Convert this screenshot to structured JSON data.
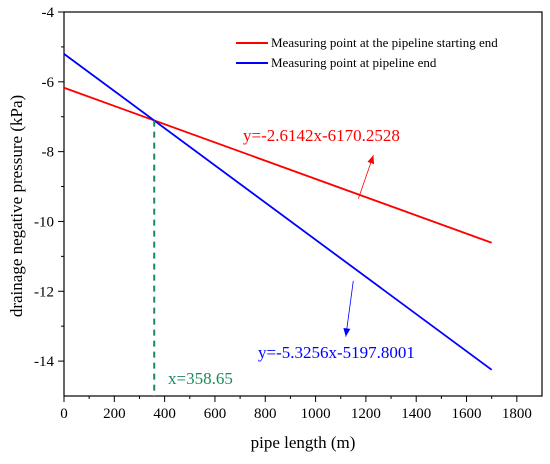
{
  "chart_data": {
    "type": "line",
    "xlabel": "pipe length (m)",
    "ylabel": "drainage negative pressure (kPa)",
    "xlim": [
      0,
      1900
    ],
    "ylim": [
      -15,
      -4
    ],
    "x_ticks": [
      0,
      200,
      400,
      600,
      800,
      1000,
      1200,
      1400,
      1600,
      1800
    ],
    "y_ticks": [
      -4,
      -6,
      -8,
      -10,
      -12,
      -14
    ],
    "grid": false,
    "legend_position": "top-right",
    "series": [
      {
        "name": "Measuring point at the pipeline starting end",
        "color": "#ff0000",
        "x": [
          0,
          1700
        ],
        "y": [
          -6.17,
          -10.61
        ],
        "equation": "y=-2.6142x-6170.2528"
      },
      {
        "name": "Measuring point at pipeline end",
        "color": "#0000ff",
        "x": [
          0,
          1700
        ],
        "y": [
          -5.2,
          -14.25
        ],
        "equation": "y=-5.3256x-5197.8001"
      }
    ],
    "intersection": {
      "x": 358.65,
      "y": -7.11,
      "label": "x=358.65",
      "color": "#1a8a5a"
    },
    "annotations": {
      "red_arrow_from": [
        1170,
        -9.35
      ],
      "red_arrow_to": [
        1230,
        -8.1
      ],
      "blue_arrow_from": [
        1150,
        -11.7
      ],
      "blue_arrow_to": [
        1120,
        -13.3
      ]
    }
  }
}
